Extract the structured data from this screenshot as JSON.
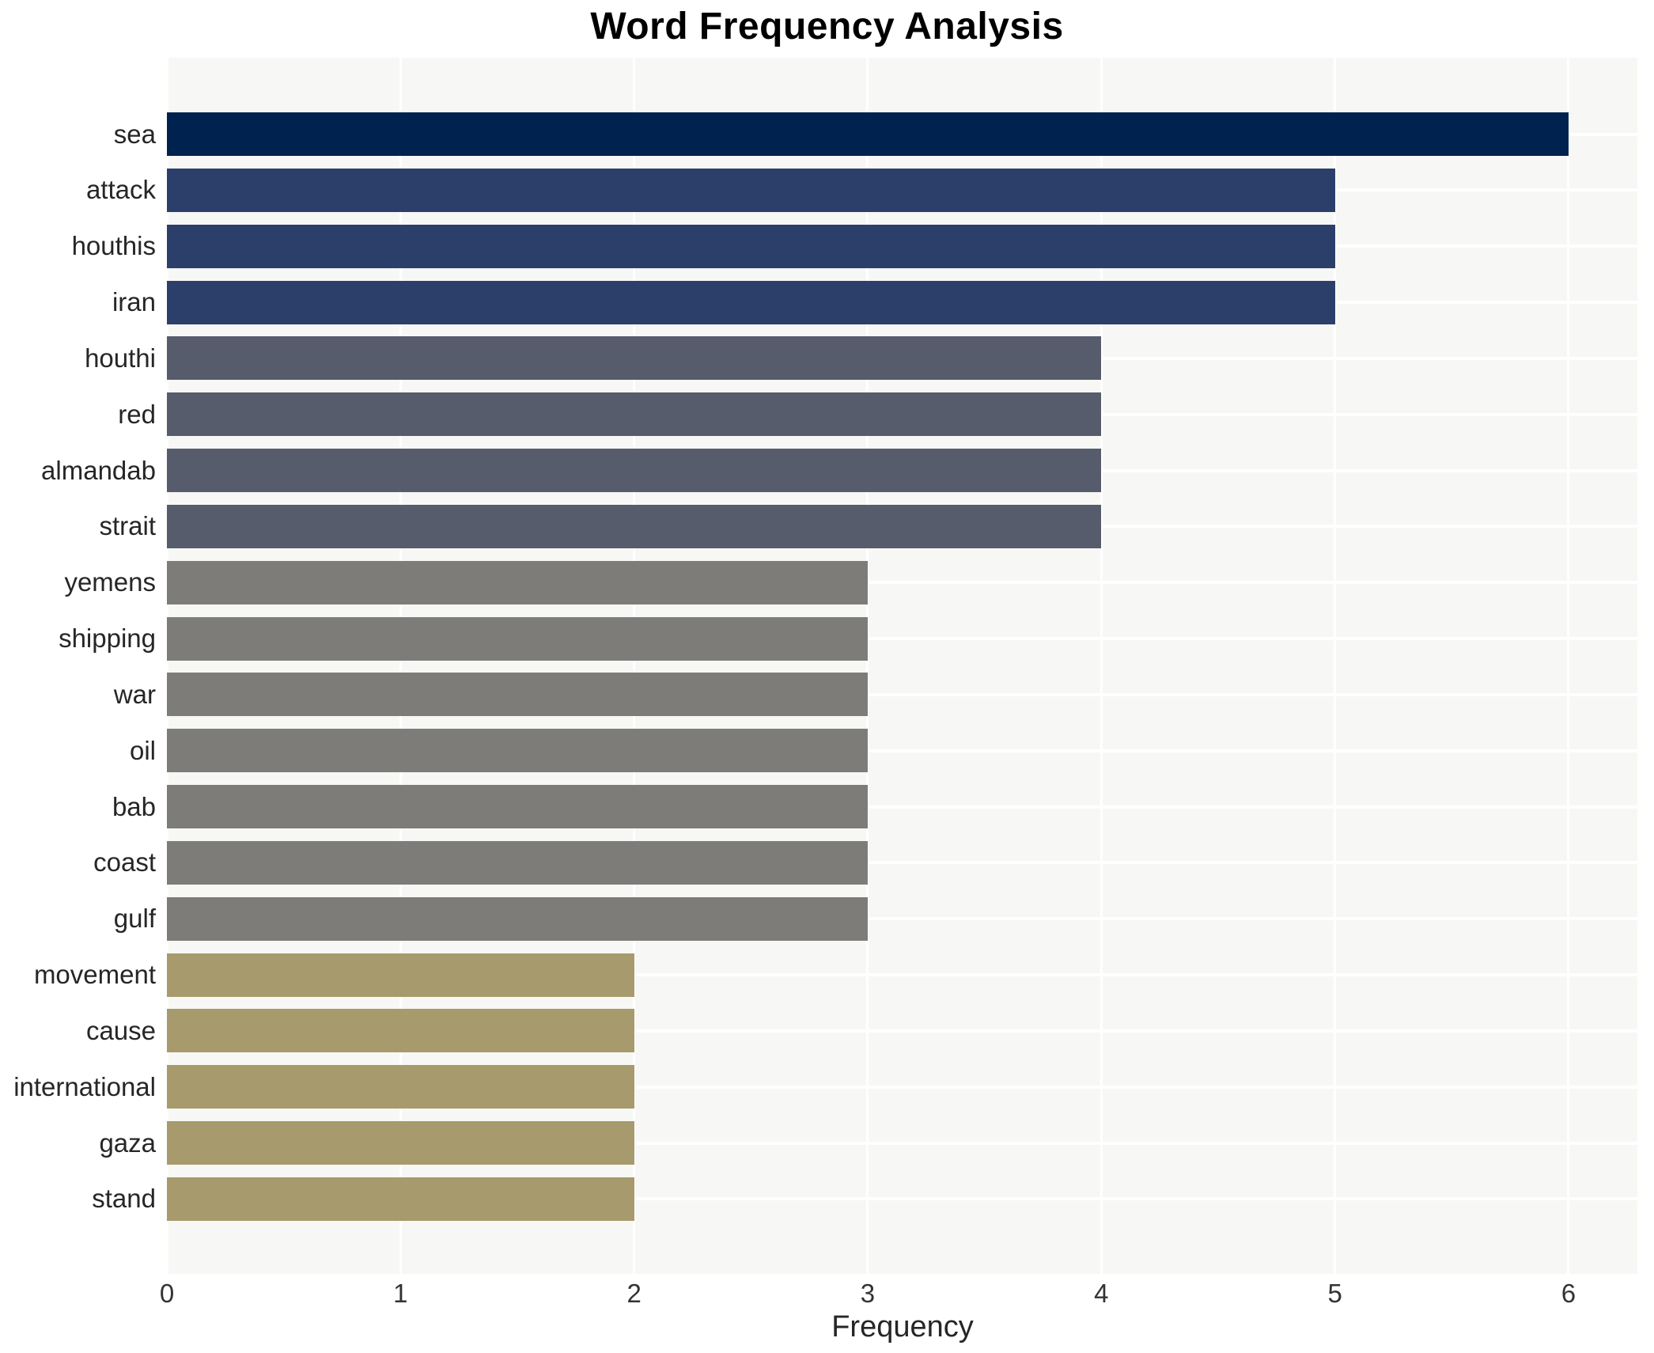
{
  "chart_data": {
    "type": "bar",
    "orientation": "horizontal",
    "title": "Word Frequency Analysis",
    "xlabel": "Frequency",
    "ylabel": "",
    "categories": [
      "sea",
      "attack",
      "houthis",
      "iran",
      "houthi",
      "red",
      "almandab",
      "strait",
      "yemens",
      "shipping",
      "war",
      "oil",
      "bab",
      "coast",
      "gulf",
      "movement",
      "cause",
      "international",
      "gaza",
      "stand"
    ],
    "values": [
      6,
      5,
      5,
      5,
      4,
      4,
      4,
      4,
      3,
      3,
      3,
      3,
      3,
      3,
      3,
      2,
      2,
      2,
      2,
      2
    ],
    "bar_colors": [
      "#00224e",
      "#2c3f6a",
      "#2c3f6a",
      "#2c3f6a",
      "#575c6d",
      "#575c6d",
      "#575c6d",
      "#575c6d",
      "#7d7c79",
      "#7d7c79",
      "#7d7c79",
      "#7d7c79",
      "#7d7c79",
      "#7d7c79",
      "#7d7c79",
      "#a79a6c",
      "#a79a6c",
      "#a79a6c",
      "#a79a6c",
      "#a79a6c"
    ],
    "x_ticks": [
      "0",
      "1",
      "2",
      "3",
      "4",
      "5",
      "6"
    ],
    "xlim": [
      0,
      6.29
    ],
    "grid": true,
    "legend": false,
    "plot_bg_color": "#f7f7f5",
    "grid_color": "#ffffff",
    "title_color": "#000000",
    "tick_label_color": "#333333",
    "category_label_color": "#262626"
  }
}
